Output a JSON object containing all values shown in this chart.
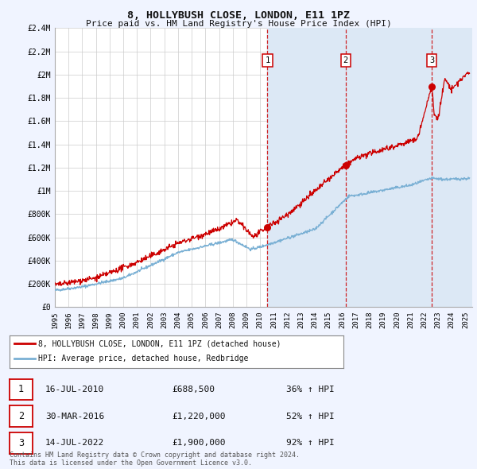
{
  "title": "8, HOLLYBUSH CLOSE, LONDON, E11 1PZ",
  "subtitle": "Price paid vs. HM Land Registry's House Price Index (HPI)",
  "bg_color": "#f0f4ff",
  "plot_bg_color": "#ffffff",
  "grid_color": "#cccccc",
  "hpi_line_color": "#7ab0d4",
  "price_line_color": "#cc0000",
  "sale_dot_color": "#cc0000",
  "ylim": [
    0,
    2400000
  ],
  "yticks": [
    0,
    200000,
    400000,
    600000,
    800000,
    1000000,
    1200000,
    1400000,
    1600000,
    1800000,
    2000000,
    2200000,
    2400000
  ],
  "ytick_labels": [
    "£0",
    "£200K",
    "£400K",
    "£600K",
    "£800K",
    "£1M",
    "£1.2M",
    "£1.4M",
    "£1.6M",
    "£1.8M",
    "£2M",
    "£2.2M",
    "£2.4M"
  ],
  "xlim_start": 1995.0,
  "xlim_end": 2025.5,
  "xticks": [
    1995,
    1996,
    1997,
    1998,
    1999,
    2000,
    2001,
    2002,
    2003,
    2004,
    2005,
    2006,
    2007,
    2008,
    2009,
    2010,
    2011,
    2012,
    2013,
    2014,
    2015,
    2016,
    2017,
    2018,
    2019,
    2020,
    2021,
    2022,
    2023,
    2024,
    2025
  ],
  "sale_events": [
    {
      "year_float": 2010.54,
      "price": 688500,
      "label": "1"
    },
    {
      "year_float": 2016.25,
      "price": 1220000,
      "label": "2"
    },
    {
      "year_float": 2022.54,
      "price": 1900000,
      "label": "3"
    }
  ],
  "vline_color": "#cc0000",
  "legend_entries": [
    {
      "label": "8, HOLLYBUSH CLOSE, LONDON, E11 1PZ (detached house)",
      "color": "#cc0000"
    },
    {
      "label": "HPI: Average price, detached house, Redbridge",
      "color": "#7ab0d4"
    }
  ],
  "table_rows": [
    {
      "num": "1",
      "date": "16-JUL-2010",
      "price": "£688,500",
      "change": "36% ↑ HPI"
    },
    {
      "num": "2",
      "date": "30-MAR-2016",
      "price": "£1,220,000",
      "change": "52% ↑ HPI"
    },
    {
      "num": "3",
      "date": "14-JUL-2022",
      "price": "£1,900,000",
      "change": "92% ↑ HPI"
    }
  ],
  "footer_text": "Contains HM Land Registry data © Crown copyright and database right 2024.\nThis data is licensed under the Open Government Licence v3.0.",
  "shaded_region_start": 2010.54,
  "shaded_region_end": 2025.5,
  "shaded_region_color": "#dce8f5"
}
